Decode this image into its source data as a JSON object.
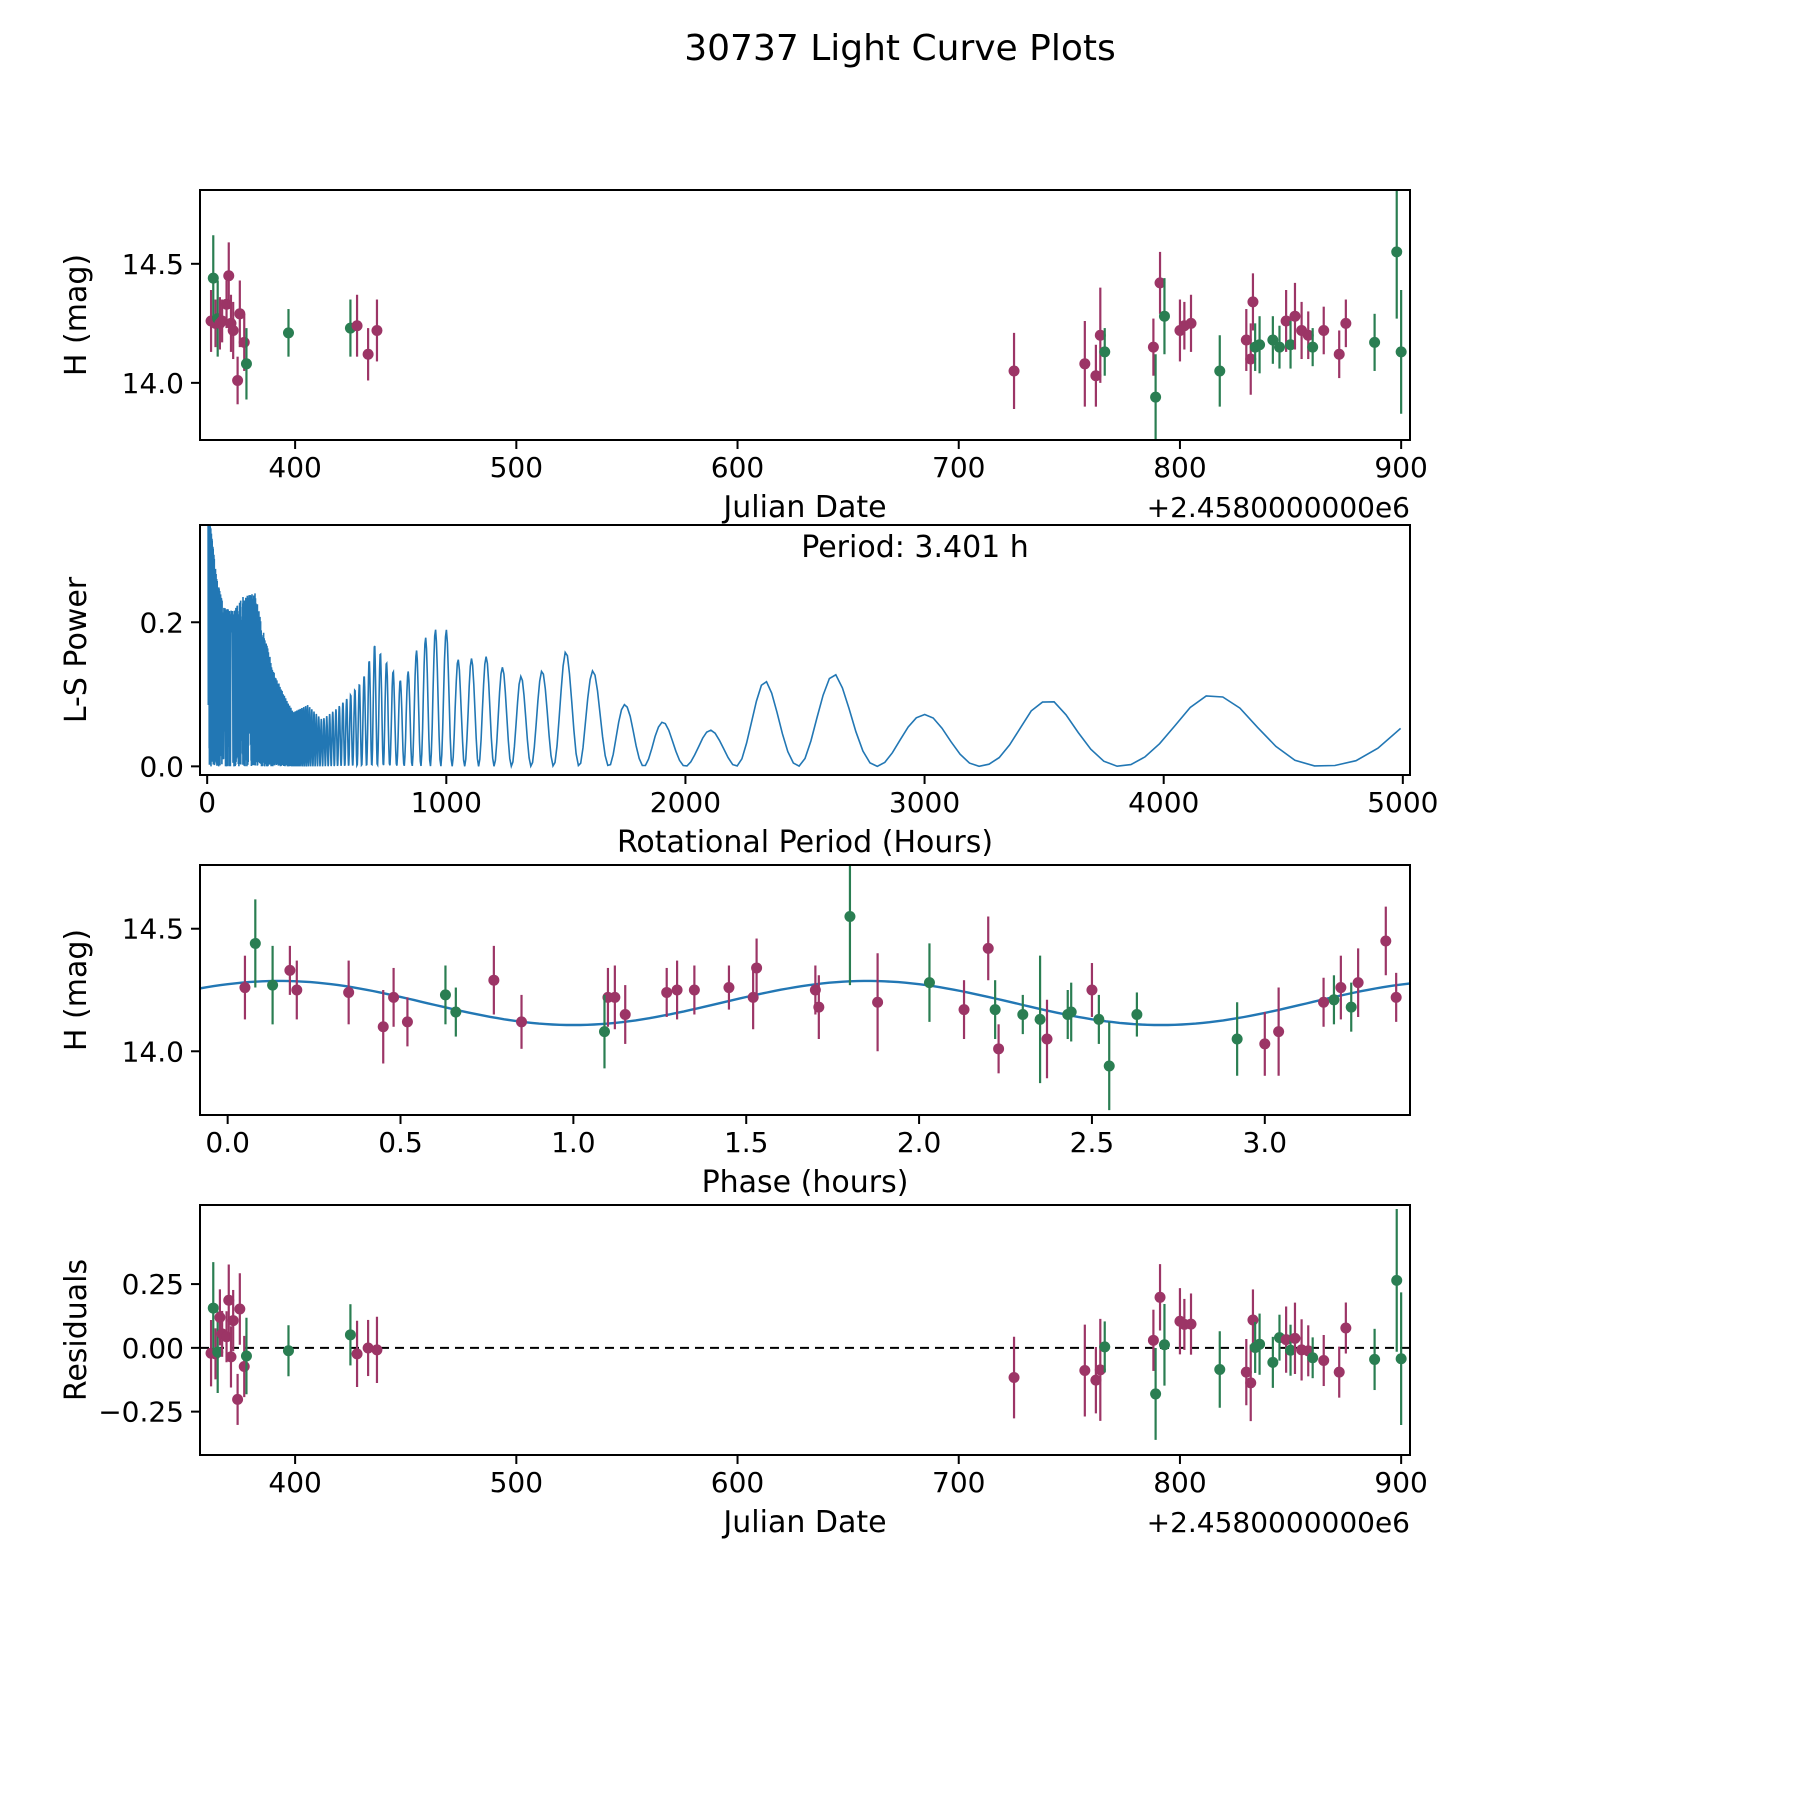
{
  "chart_data": {
    "title": "30737 Light Curve Plots",
    "colors": {
      "green": "#2a7e52",
      "purple": "#9c3566",
      "curve": "#2277b4",
      "axis": "#000000"
    },
    "points_columns": [
      "julian_date_minus_2458000",
      "phase_hours",
      "H_mag",
      "err_mag",
      "color"
    ],
    "points": [
      [
        362,
        0.05,
        14.26,
        0.13,
        "p"
      ],
      [
        363,
        0.08,
        14.44,
        0.18,
        "g"
      ],
      [
        364,
        1.7,
        14.25,
        0.1,
        "p"
      ],
      [
        365,
        0.13,
        14.27,
        0.16,
        "g"
      ],
      [
        366,
        2.5,
        14.25,
        0.11,
        "p"
      ],
      [
        367,
        1.45,
        14.26,
        0.09,
        "p"
      ],
      [
        369,
        0.18,
        14.33,
        0.1,
        "p"
      ],
      [
        370,
        3.35,
        14.45,
        0.14,
        "p"
      ],
      [
        371,
        0.2,
        14.25,
        0.12,
        "p"
      ],
      [
        372,
        1.1,
        14.22,
        0.12,
        "p"
      ],
      [
        374,
        2.23,
        14.01,
        0.1,
        "p"
      ],
      [
        375,
        0.77,
        14.29,
        0.14,
        "p"
      ],
      [
        377,
        2.13,
        14.17,
        0.12,
        "p"
      ],
      [
        378,
        1.09,
        14.08,
        0.15,
        "g"
      ],
      [
        397,
        3.2,
        14.21,
        0.1,
        "g"
      ],
      [
        425,
        0.63,
        14.23,
        0.12,
        "g"
      ],
      [
        428,
        0.35,
        14.24,
        0.13,
        "p"
      ],
      [
        433,
        0.85,
        14.12,
        0.11,
        "p"
      ],
      [
        437,
        1.52,
        14.22,
        0.13,
        "p"
      ],
      [
        725,
        2.37,
        14.05,
        0.16,
        "p"
      ],
      [
        757,
        3.04,
        14.08,
        0.18,
        "p"
      ],
      [
        762,
        3.0,
        14.03,
        0.13,
        "p"
      ],
      [
        764,
        1.88,
        14.2,
        0.2,
        "p"
      ],
      [
        766,
        2.52,
        14.13,
        0.1,
        "g"
      ],
      [
        788,
        1.15,
        14.15,
        0.12,
        "p"
      ],
      [
        789,
        2.55,
        13.94,
        0.18,
        "g"
      ],
      [
        791,
        2.2,
        14.42,
        0.13,
        "p"
      ],
      [
        793,
        2.03,
        14.28,
        0.16,
        "g"
      ],
      [
        800,
        1.12,
        14.22,
        0.13,
        "p"
      ],
      [
        802,
        1.27,
        14.24,
        0.1,
        "p"
      ],
      [
        805,
        1.3,
        14.25,
        0.12,
        "p"
      ],
      [
        818,
        2.92,
        14.05,
        0.15,
        "g"
      ],
      [
        830,
        1.71,
        14.18,
        0.13,
        "p"
      ],
      [
        832,
        0.45,
        14.1,
        0.15,
        "p"
      ],
      [
        833,
        1.53,
        14.34,
        0.12,
        "p"
      ],
      [
        834,
        2.43,
        14.15,
        0.1,
        "g"
      ],
      [
        836,
        2.44,
        14.16,
        0.12,
        "g"
      ],
      [
        842,
        3.25,
        14.18,
        0.1,
        "g"
      ],
      [
        845,
        2.63,
        14.15,
        0.09,
        "g"
      ],
      [
        848,
        3.22,
        14.26,
        0.13,
        "p"
      ],
      [
        850,
        0.66,
        14.16,
        0.1,
        "g"
      ],
      [
        852,
        3.27,
        14.28,
        0.14,
        "p"
      ],
      [
        855,
        0.48,
        14.22,
        0.12,
        "p"
      ],
      [
        858,
        3.17,
        14.2,
        0.1,
        "p"
      ],
      [
        860,
        2.3,
        14.15,
        0.08,
        "g"
      ],
      [
        865,
        3.38,
        14.22,
        0.1,
        "p"
      ],
      [
        872,
        0.52,
        14.12,
        0.1,
        "p"
      ],
      [
        875,
        1.35,
        14.25,
        0.1,
        "p"
      ],
      [
        888,
        2.22,
        14.17,
        0.12,
        "g"
      ],
      [
        898,
        1.8,
        14.55,
        0.28,
        "g"
      ],
      [
        900,
        2.35,
        14.13,
        0.26,
        "g"
      ]
    ],
    "fit": {
      "rotation_period_hours": 3.401,
      "rotation_period_label": "Period: 3.401 h",
      "mean": 14.197,
      "amplitude": 0.09,
      "phase_zero": 0.15,
      "sine_period_hours": 1.7005
    },
    "periodogram": {
      "phase_constant": 21000,
      "x_min": 2,
      "x_max": 5000,
      "envelope": [
        [
          0,
          0.345
        ],
        [
          15,
          0.33
        ],
        [
          40,
          0.26
        ],
        [
          70,
          0.22
        ],
        [
          110,
          0.215
        ],
        [
          150,
          0.235
        ],
        [
          200,
          0.24
        ],
        [
          240,
          0.18
        ],
        [
          280,
          0.13
        ],
        [
          320,
          0.1
        ],
        [
          360,
          0.075
        ],
        [
          420,
          0.085
        ],
        [
          480,
          0.065
        ],
        [
          540,
          0.08
        ],
        [
          600,
          0.1
        ],
        [
          650,
          0.12
        ],
        [
          700,
          0.17
        ],
        [
          760,
          0.14
        ],
        [
          820,
          0.115
        ],
        [
          880,
          0.165
        ],
        [
          940,
          0.19
        ],
        [
          1000,
          0.19
        ],
        [
          1060,
          0.14
        ],
        [
          1130,
          0.155
        ],
        [
          1200,
          0.15
        ],
        [
          1270,
          0.125
        ],
        [
          1340,
          0.125
        ],
        [
          1420,
          0.135
        ],
        [
          1500,
          0.16
        ],
        [
          1580,
          0.145
        ],
        [
          1650,
          0.12
        ],
        [
          1750,
          0.085
        ],
        [
          1850,
          0.07
        ],
        [
          1950,
          0.055
        ],
        [
          2050,
          0.045
        ],
        [
          2150,
          0.055
        ],
        [
          2250,
          0.1
        ],
        [
          2330,
          0.12
        ],
        [
          2420,
          0.1
        ],
        [
          2520,
          0.12
        ],
        [
          2620,
          0.13
        ],
        [
          2720,
          0.1
        ],
        [
          2820,
          0.072
        ],
        [
          2950,
          0.072
        ],
        [
          3050,
          0.072
        ],
        [
          3150,
          0.065
        ],
        [
          3300,
          0.05
        ],
        [
          3450,
          0.085
        ],
        [
          3550,
          0.095
        ],
        [
          3700,
          0.08
        ],
        [
          3850,
          0.06
        ],
        [
          4000,
          0.075
        ],
        [
          4150,
          0.098
        ],
        [
          4300,
          0.1
        ],
        [
          4450,
          0.085
        ],
        [
          4600,
          0.055
        ],
        [
          4800,
          0.05
        ],
        [
          5000,
          0.085
        ]
      ]
    },
    "charts": [
      {
        "type": "scatter",
        "name": "jd-lightcurve",
        "xlabel": "Julian Date",
        "ylabel": "H (mag)",
        "x_offset_label": "+2.4580000000e6",
        "xlim": [
          357,
          904
        ],
        "ylim": [
          13.76,
          14.81
        ],
        "xticks": [
          400,
          500,
          600,
          700,
          800,
          900
        ],
        "yticks": [
          14.0,
          14.5
        ],
        "ytick_labels": [
          "14.0",
          "14.5"
        ],
        "x_key": "jd",
        "y_key": "mag"
      },
      {
        "type": "line",
        "name": "ls-periodogram",
        "xlabel": "Rotational Period (Hours)",
        "ylabel": "L-S Power",
        "xlim": [
          -30,
          5030
        ],
        "ylim": [
          -0.012,
          0.335
        ],
        "xticks": [
          0,
          1000,
          2000,
          3000,
          4000,
          5000
        ],
        "yticks": [
          0.0,
          0.2
        ],
        "ytick_labels": [
          "0.0",
          "0.2"
        ],
        "annotation": "Period: 3.401 h"
      },
      {
        "type": "scatter",
        "name": "phase-folded",
        "xlabel": "Phase (hours)",
        "ylabel": "H (mag)",
        "xlim": [
          -0.08,
          3.42
        ],
        "ylim": [
          13.74,
          14.76
        ],
        "xticks": [
          0.0,
          0.5,
          1.0,
          1.5,
          2.0,
          2.5,
          3.0
        ],
        "xtick_labels": [
          "0.0",
          "0.5",
          "1.0",
          "1.5",
          "2.0",
          "2.5",
          "3.0"
        ],
        "yticks": [
          14.0,
          14.5
        ],
        "ytick_labels": [
          "14.0",
          "14.5"
        ],
        "x_key": "phase",
        "y_key": "mag",
        "show_fit": true
      },
      {
        "type": "scatter",
        "name": "residuals",
        "xlabel": "Julian Date",
        "ylabel": "Residuals",
        "x_offset_label": "+2.4580000000e6",
        "xlim": [
          357,
          904
        ],
        "ylim": [
          -0.42,
          0.56
        ],
        "xticks": [
          400,
          500,
          600,
          700,
          800,
          900
        ],
        "yticks": [
          -0.25,
          0.0,
          0.25
        ],
        "ytick_labels": [
          "−0.25",
          "0.00",
          "0.25"
        ],
        "x_key": "jd",
        "y_key": "residual",
        "zero_line": true
      }
    ]
  }
}
